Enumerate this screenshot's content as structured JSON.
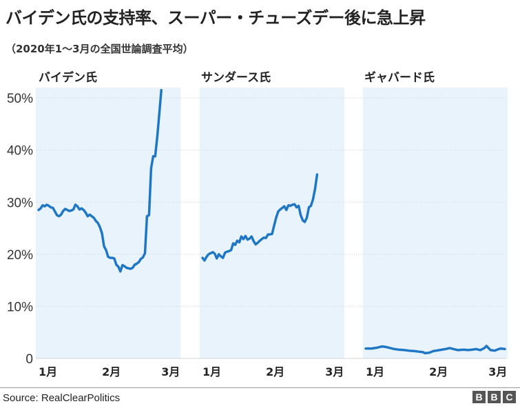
{
  "title": "バイデン氏の支持率、スーパー・チューズデー後に急上昇",
  "subtitle": "（2020年1〜3月の全国世論調査平均）",
  "source": "Source: RealClearPolitics",
  "logo": [
    "B",
    "B",
    "C"
  ],
  "colors": {
    "line": "#1f77c4",
    "panel_bg": "#e8f3fc",
    "grid": "#d0d0d0"
  },
  "chart_data": {
    "type": "line",
    "y_ticks": [
      "0",
      "10%",
      "20%",
      "30%",
      "40%",
      "50%"
    ],
    "y_tick_values": [
      0,
      10,
      20,
      30,
      40,
      50
    ],
    "ylim": [
      0,
      52
    ],
    "x_ticks": [
      "1月",
      "2月",
      "3月"
    ],
    "x_tick_days": [
      1,
      32,
      61
    ],
    "xlim": [
      1,
      69
    ],
    "grid": true,
    "panels": [
      {
        "name": "バイデン氏",
        "series": [
          {
            "x": 1,
            "y": 28.5
          },
          {
            "x": 2,
            "y": 28.8
          },
          {
            "x": 3,
            "y": 29.4
          },
          {
            "x": 4,
            "y": 29.2
          },
          {
            "x": 5,
            "y": 29.5
          },
          {
            "x": 6,
            "y": 29.3
          },
          {
            "x": 7,
            "y": 29.0
          },
          {
            "x": 8,
            "y": 28.9
          },
          {
            "x": 9,
            "y": 28.2
          },
          {
            "x": 10,
            "y": 27.5
          },
          {
            "x": 11,
            "y": 27.3
          },
          {
            "x": 12,
            "y": 27.6
          },
          {
            "x": 13,
            "y": 28.3
          },
          {
            "x": 14,
            "y": 28.7
          },
          {
            "x": 15,
            "y": 28.5
          },
          {
            "x": 16,
            "y": 28.3
          },
          {
            "x": 17,
            "y": 28.4
          },
          {
            "x": 18,
            "y": 28.6
          },
          {
            "x": 19,
            "y": 29.5
          },
          {
            "x": 20,
            "y": 29.2
          },
          {
            "x": 21,
            "y": 28.6
          },
          {
            "x": 22,
            "y": 28.8
          },
          {
            "x": 23,
            "y": 28.5
          },
          {
            "x": 24,
            "y": 28.0
          },
          {
            "x": 25,
            "y": 27.3
          },
          {
            "x": 26,
            "y": 27.6
          },
          {
            "x": 27,
            "y": 27.3
          },
          {
            "x": 28,
            "y": 27.0
          },
          {
            "x": 29,
            "y": 26.4
          },
          {
            "x": 30,
            "y": 26.0
          },
          {
            "x": 31,
            "y": 25.2
          },
          {
            "x": 32,
            "y": 24.0
          },
          {
            "x": 33,
            "y": 21.5
          },
          {
            "x": 34,
            "y": 20.8
          },
          {
            "x": 35,
            "y": 19.5
          },
          {
            "x": 36,
            "y": 19.3
          },
          {
            "x": 37,
            "y": 19.3
          },
          {
            "x": 38,
            "y": 19.2
          },
          {
            "x": 39,
            "y": 18.0
          },
          {
            "x": 40,
            "y": 17.6
          },
          {
            "x": 41,
            "y": 16.7
          },
          {
            "x": 42,
            "y": 17.9
          },
          {
            "x": 43,
            "y": 17.7
          },
          {
            "x": 44,
            "y": 17.4
          },
          {
            "x": 45,
            "y": 17.3
          },
          {
            "x": 46,
            "y": 17.2
          },
          {
            "x": 47,
            "y": 17.4
          },
          {
            "x": 48,
            "y": 18.0
          },
          {
            "x": 49,
            "y": 18.2
          },
          {
            "x": 50,
            "y": 18.5
          },
          {
            "x": 51,
            "y": 19.1
          },
          {
            "x": 52,
            "y": 19.4
          },
          {
            "x": 53,
            "y": 20.2
          },
          {
            "x": 54,
            "y": 27.3
          },
          {
            "x": 55,
            "y": 27.5
          },
          {
            "x": 56,
            "y": 36.5
          },
          {
            "x": 57,
            "y": 38.8
          },
          {
            "x": 58,
            "y": 38.8
          },
          {
            "x": 59,
            "y": 42.5
          },
          {
            "x": 60,
            "y": 47.0
          },
          {
            "x": 61,
            "y": 51.5
          }
        ]
      },
      {
        "name": "サンダース氏",
        "series": [
          {
            "x": 1,
            "y": 19.3
          },
          {
            "x": 2,
            "y": 18.8
          },
          {
            "x": 3,
            "y": 19.5
          },
          {
            "x": 4,
            "y": 20.0
          },
          {
            "x": 5,
            "y": 20.2
          },
          {
            "x": 6,
            "y": 20.4
          },
          {
            "x": 7,
            "y": 20.1
          },
          {
            "x": 8,
            "y": 19.2
          },
          {
            "x": 9,
            "y": 20.0
          },
          {
            "x": 10,
            "y": 19.6
          },
          {
            "x": 11,
            "y": 19.3
          },
          {
            "x": 12,
            "y": 20.3
          },
          {
            "x": 13,
            "y": 20.5
          },
          {
            "x": 14,
            "y": 20.6
          },
          {
            "x": 15,
            "y": 20.8
          },
          {
            "x": 16,
            "y": 22.1
          },
          {
            "x": 17,
            "y": 21.8
          },
          {
            "x": 18,
            "y": 22.6
          },
          {
            "x": 19,
            "y": 22.3
          },
          {
            "x": 20,
            "y": 23.4
          },
          {
            "x": 21,
            "y": 22.9
          },
          {
            "x": 22,
            "y": 23.5
          },
          {
            "x": 23,
            "y": 22.8
          },
          {
            "x": 24,
            "y": 23.0
          },
          {
            "x": 25,
            "y": 23.4
          },
          {
            "x": 26,
            "y": 22.5
          },
          {
            "x": 27,
            "y": 21.9
          },
          {
            "x": 28,
            "y": 22.2
          },
          {
            "x": 29,
            "y": 22.6
          },
          {
            "x": 30,
            "y": 22.9
          },
          {
            "x": 31,
            "y": 23.2
          },
          {
            "x": 32,
            "y": 23.1
          },
          {
            "x": 33,
            "y": 23.8
          },
          {
            "x": 34,
            "y": 23.8
          },
          {
            "x": 35,
            "y": 23.9
          },
          {
            "x": 36,
            "y": 25.5
          },
          {
            "x": 37,
            "y": 27.0
          },
          {
            "x": 38,
            "y": 28.2
          },
          {
            "x": 39,
            "y": 28.6
          },
          {
            "x": 40,
            "y": 28.9
          },
          {
            "x": 41,
            "y": 29.2
          },
          {
            "x": 42,
            "y": 28.5
          },
          {
            "x": 43,
            "y": 29.4
          },
          {
            "x": 44,
            "y": 29.3
          },
          {
            "x": 45,
            "y": 29.5
          },
          {
            "x": 46,
            "y": 29.6
          },
          {
            "x": 47,
            "y": 29.0
          },
          {
            "x": 48,
            "y": 29.3
          },
          {
            "x": 49,
            "y": 27.5
          },
          {
            "x": 50,
            "y": 26.5
          },
          {
            "x": 51,
            "y": 26.2
          },
          {
            "x": 52,
            "y": 27.0
          },
          {
            "x": 53,
            "y": 29.0
          },
          {
            "x": 54,
            "y": 29.3
          },
          {
            "x": 55,
            "y": 30.5
          },
          {
            "x": 56,
            "y": 32.5
          },
          {
            "x": 57,
            "y": 35.3
          }
        ]
      },
      {
        "name": "ギャバード氏",
        "series": [
          {
            "x": 1,
            "y": 1.9
          },
          {
            "x": 4,
            "y": 1.9
          },
          {
            "x": 7,
            "y": 2.1
          },
          {
            "x": 9,
            "y": 2.3
          },
          {
            "x": 11,
            "y": 2.2
          },
          {
            "x": 13,
            "y": 2.0
          },
          {
            "x": 15,
            "y": 1.8
          },
          {
            "x": 17,
            "y": 1.7
          },
          {
            "x": 20,
            "y": 1.6
          },
          {
            "x": 22,
            "y": 1.5
          },
          {
            "x": 25,
            "y": 1.4
          },
          {
            "x": 27,
            "y": 1.3
          },
          {
            "x": 29,
            "y": 1.2
          },
          {
            "x": 30,
            "y": 1.0
          },
          {
            "x": 32,
            "y": 1.1
          },
          {
            "x": 34,
            "y": 1.4
          },
          {
            "x": 37,
            "y": 1.6
          },
          {
            "x": 40,
            "y": 1.8
          },
          {
            "x": 42,
            "y": 2.0
          },
          {
            "x": 44,
            "y": 1.8
          },
          {
            "x": 46,
            "y": 1.6
          },
          {
            "x": 49,
            "y": 1.7
          },
          {
            "x": 51,
            "y": 1.6
          },
          {
            "x": 53,
            "y": 1.7
          },
          {
            "x": 55,
            "y": 1.8
          },
          {
            "x": 57,
            "y": 1.6
          },
          {
            "x": 59,
            "y": 2.0
          },
          {
            "x": 60,
            "y": 2.4
          },
          {
            "x": 62,
            "y": 1.6
          },
          {
            "x": 64,
            "y": 1.5
          },
          {
            "x": 66,
            "y": 1.8
          },
          {
            "x": 67,
            "y": 1.9
          },
          {
            "x": 69,
            "y": 1.8
          }
        ]
      }
    ]
  }
}
